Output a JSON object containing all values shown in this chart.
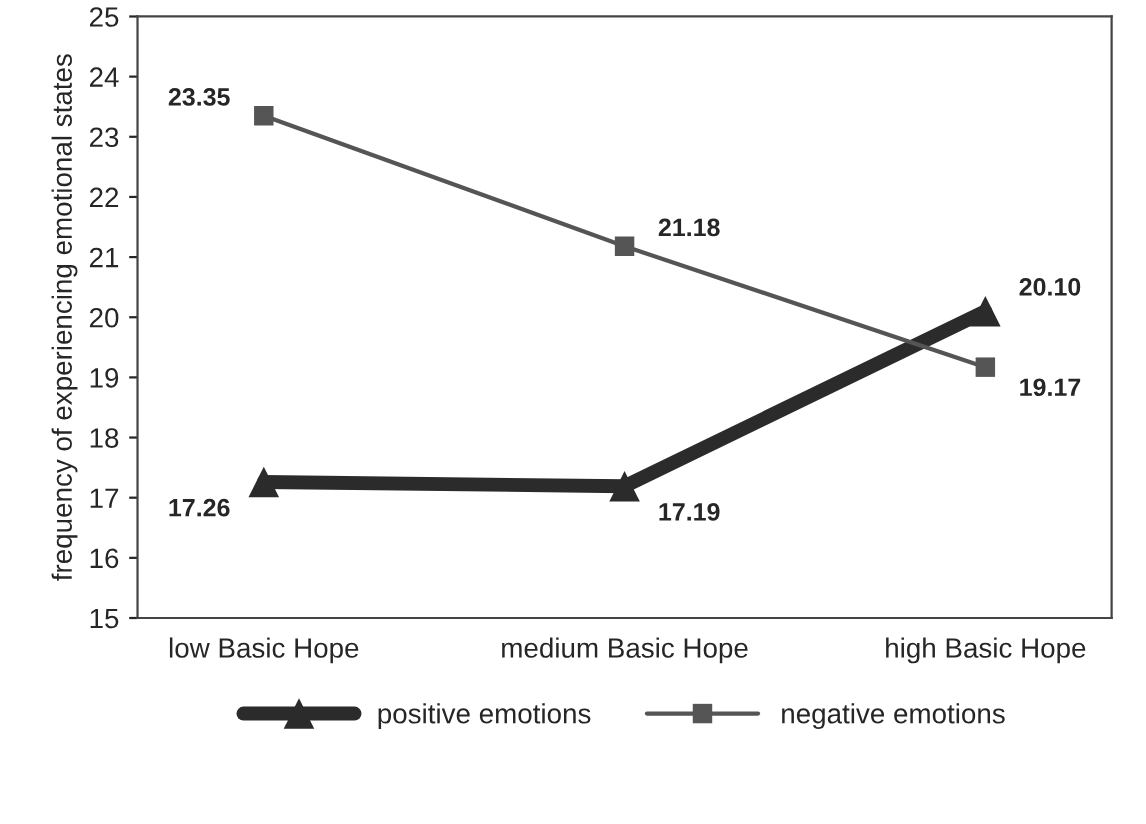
{
  "chart_data": {
    "type": "line",
    "ylabel": "frequency of experiencing emotional states",
    "categories": [
      "low Basic Hope",
      "medium Basic Hope",
      "high Basic Hope"
    ],
    "ylim": [
      15,
      25
    ],
    "yticks": [
      15,
      16,
      17,
      18,
      19,
      20,
      21,
      22,
      23,
      24,
      25
    ],
    "grid": false,
    "legend": "bottom",
    "series": [
      {
        "name": "positive emotions",
        "color": "#2b2b2b",
        "values": [
          17.26,
          17.19,
          20.1
        ],
        "value_labels": [
          "17.26",
          "17.19",
          "20.10"
        ],
        "marker": "triangle"
      },
      {
        "name": "negative emotions",
        "color": "#555555",
        "values": [
          23.35,
          21.18,
          19.17
        ],
        "value_labels": [
          "23.35",
          "21.18",
          "19.17"
        ],
        "marker": "square"
      }
    ]
  }
}
